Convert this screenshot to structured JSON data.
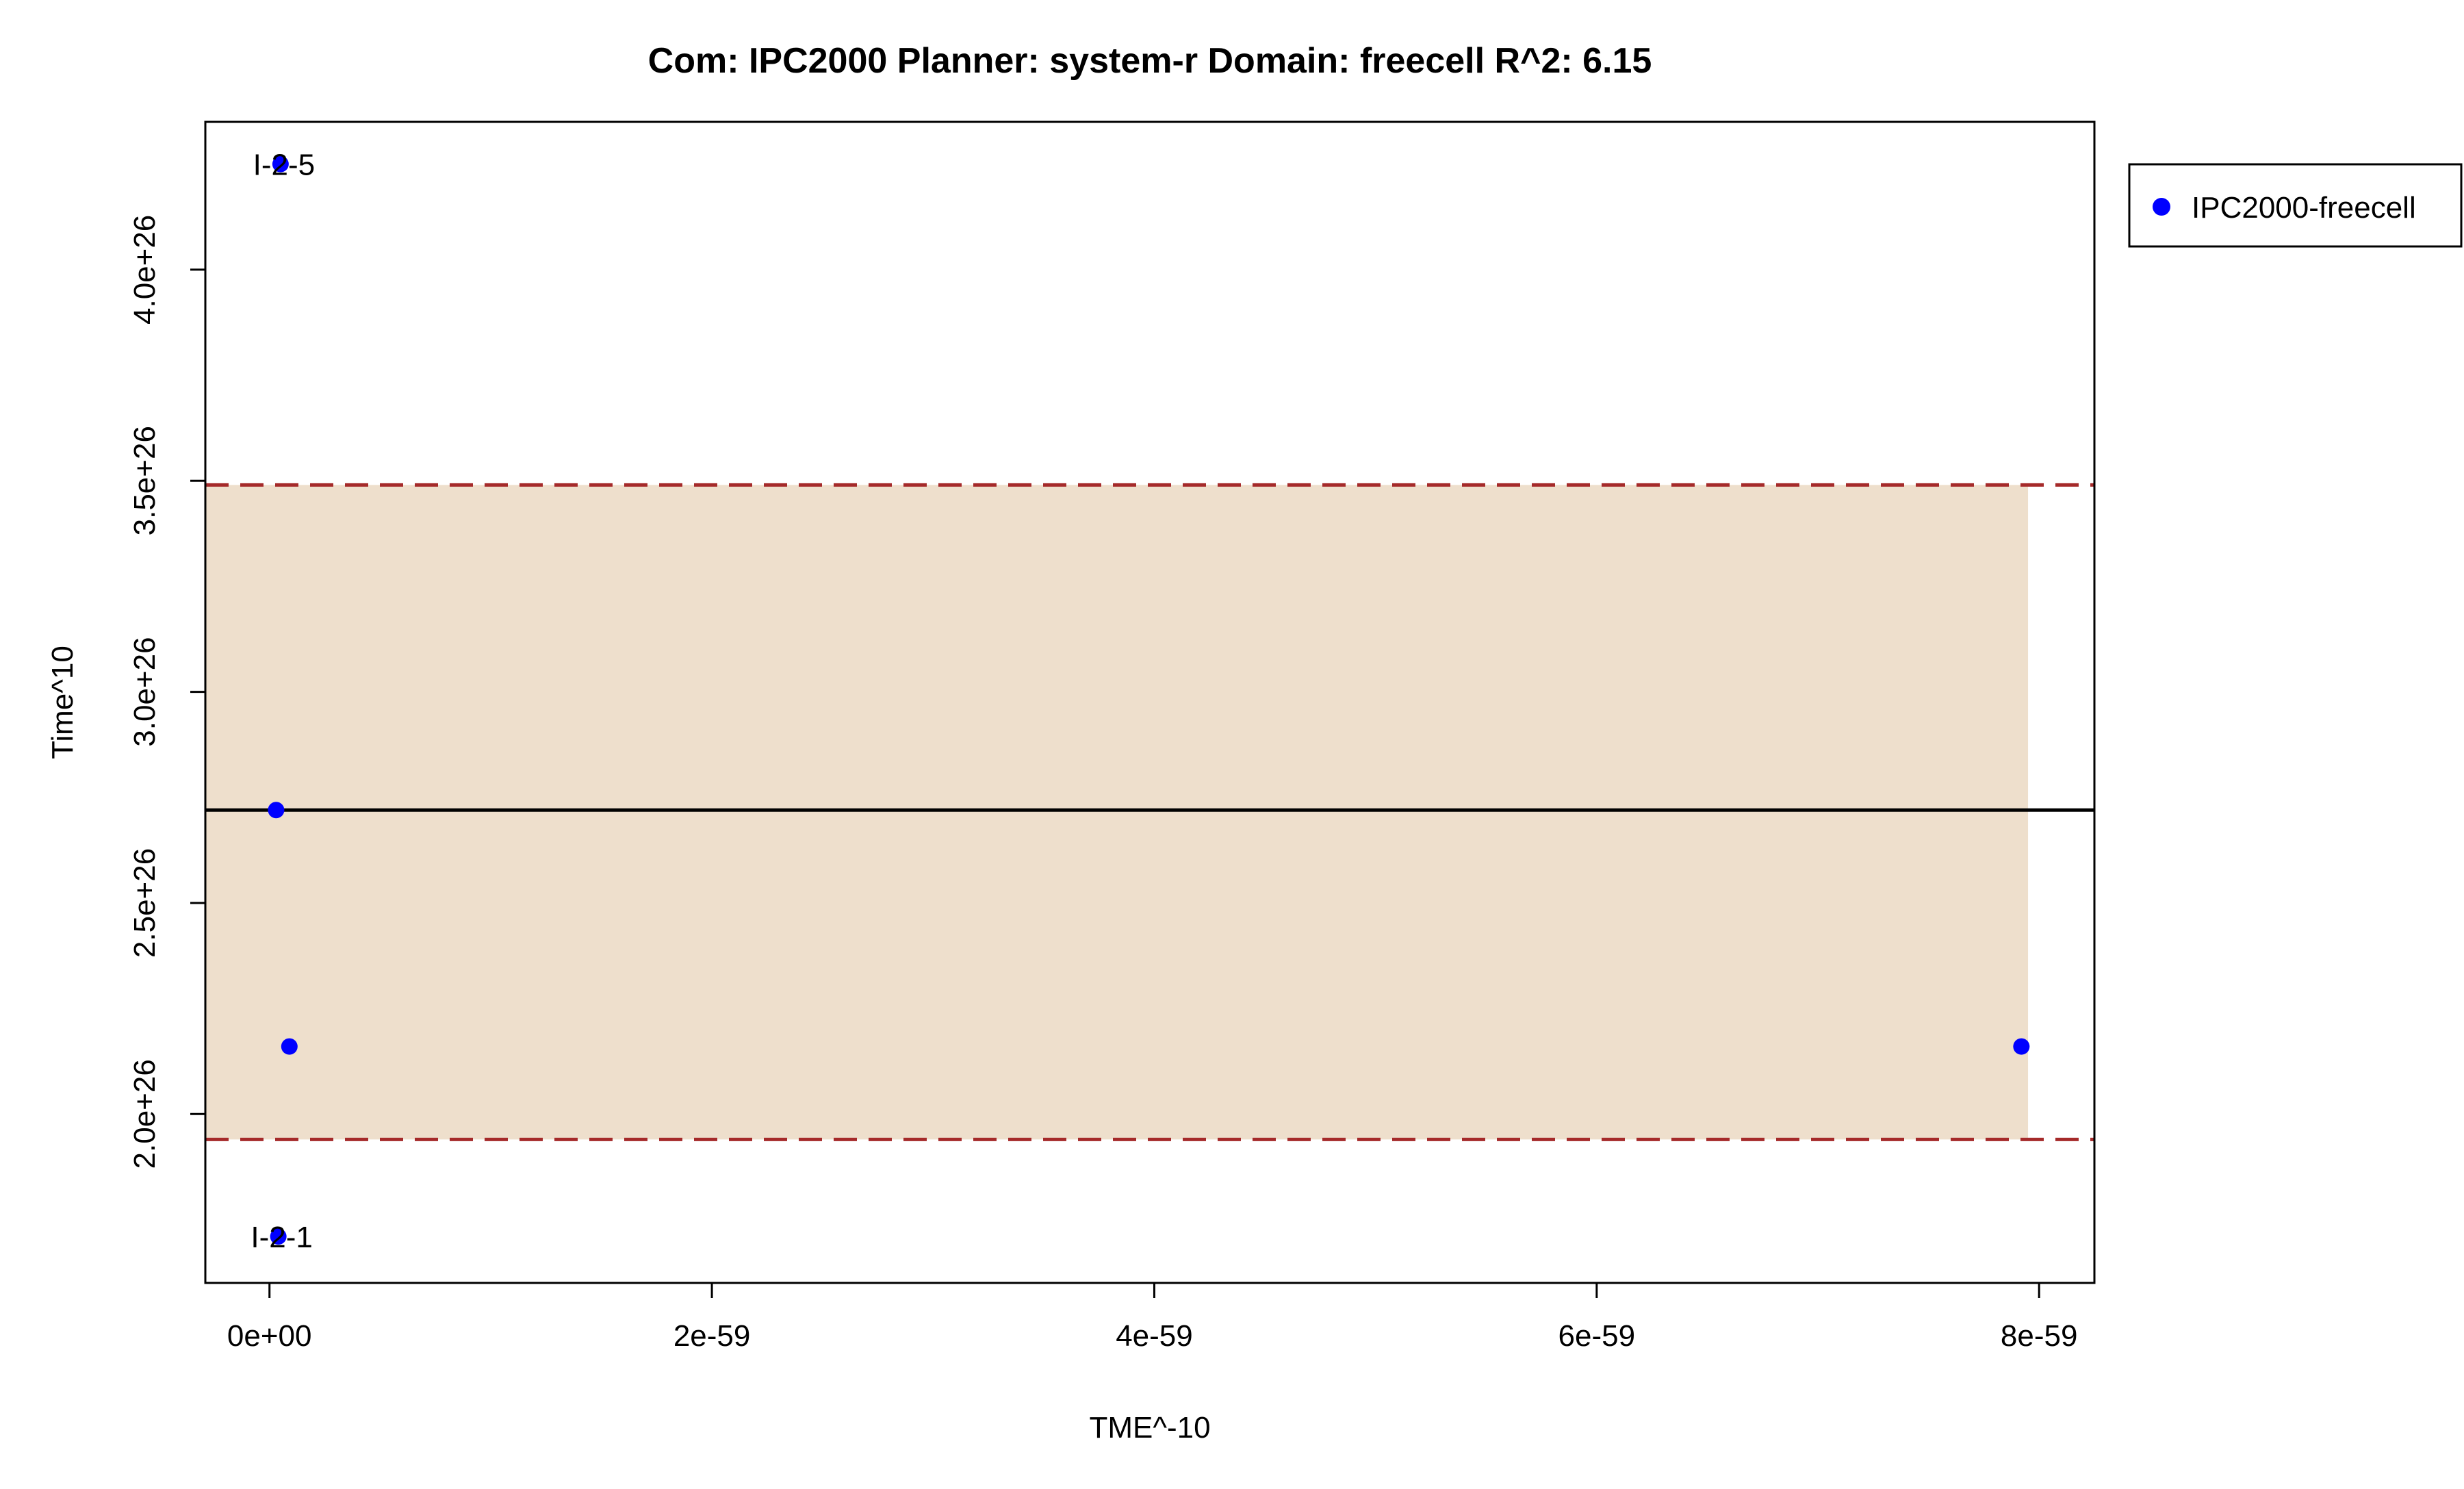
{
  "chart_data": {
    "type": "scatter",
    "title": "Com: IPC2000 Planner: system-r Domain: freecell R^2: 6.15",
    "xlabel": "TME^-10",
    "ylabel": "Time^10",
    "xlim": [
      -2.9e-60,
      8.25e-59
    ],
    "ylim": [
      1.6e+26,
      4.35e+26
    ],
    "x_ticks": [
      0,
      2e-59,
      4e-59,
      6e-59,
      8e-59
    ],
    "x_tick_labels": [
      "0e+00",
      "2e-59",
      "4e-59",
      "6e-59",
      "8e-59"
    ],
    "y_ticks": [
      2e+26,
      2.5e+26,
      3e+26,
      3.5e+26,
      4e+26
    ],
    "y_tick_labels": [
      "2.0e+26",
      "2.5e+26",
      "3.0e+26",
      "3.5e+26",
      "4.0e+26"
    ],
    "grid": false,
    "legend": {
      "position": "top-right-outside",
      "entries": [
        "IPC2000-freecell"
      ]
    },
    "series": [
      {
        "name": "IPC2000-freecell",
        "color": "#0000ff",
        "points": [
          {
            "x": 5e-61,
            "y": 4.25e+26,
            "label": "I-2-5"
          },
          {
            "x": 3e-61,
            "y": 2.72e+26,
            "label": ""
          },
          {
            "x": 9e-61,
            "y": 2.16e+26,
            "label": ""
          },
          {
            "x": 4e-61,
            "y": 1.71e+26,
            "label": "I-2-1"
          },
          {
            "x": 7.92e-59,
            "y": 2.16e+26,
            "label": ""
          }
        ]
      }
    ],
    "fit_line": {
      "color": "#000000",
      "intercept": 2.72e+26,
      "slope": 7e+30
    },
    "prediction_band": {
      "fill": "#eedfcc",
      "edge_color": "#a52a2a",
      "x_range": [
        -2.9e-60,
        7.95e-59
      ],
      "upper": {
        "intercept": 3.49e+26,
        "slope": 7e+30
      },
      "lower": {
        "intercept": 1.94e+26,
        "slope": 7e+30
      }
    }
  }
}
